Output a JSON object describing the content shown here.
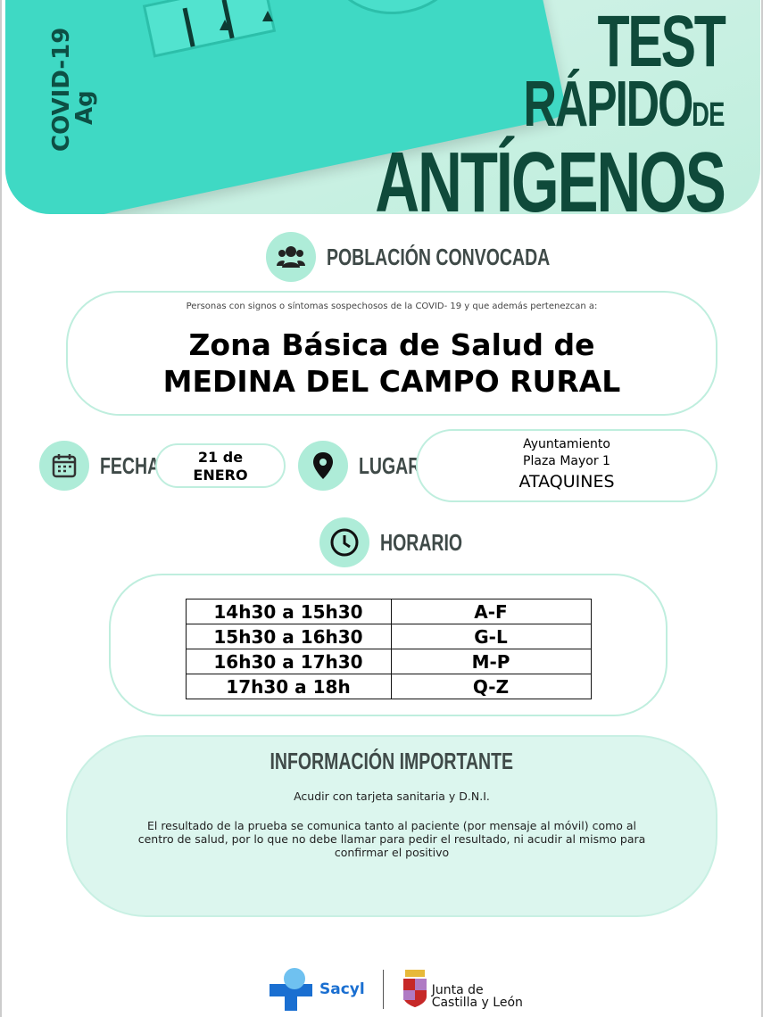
{
  "header": {
    "strip_label_1": "COVID-19",
    "strip_label_2": "Ag",
    "title_line1": "TEST",
    "title_line2": "RÁPIDO",
    "title_de": "DE",
    "title_line3": "ANTÍGENOS"
  },
  "poblacion": {
    "heading": "POBLACIÓN CONVOCADA",
    "intro": "Personas con signos o síntomas sospechosos de la COVID- 19 y que además pertenezcan a:",
    "zone_line1": "Zona Básica de Salud de",
    "zone_line2": "MEDINA DEL CAMPO RURAL"
  },
  "fecha": {
    "label": "FECHA",
    "value_line1": "21 de",
    "value_line2": "ENERO"
  },
  "lugar": {
    "label": "LUGAR",
    "line1": "Ayuntamiento",
    "line2": "Plaza Mayor 1",
    "line3": "ATAQUINES"
  },
  "horario": {
    "heading": "HORARIO",
    "rows": [
      [
        "14h30 a 15h30",
        "A-F"
      ],
      [
        "15h30 a 16h30",
        "G-L"
      ],
      [
        "16h30 a 17h30",
        "M-P"
      ],
      [
        "17h30 a 18h",
        "Q-Z"
      ]
    ]
  },
  "info": {
    "heading": "INFORMACIÓN IMPORTANTE",
    "line1": "Acudir con tarjeta sanitaria y D.N.I.",
    "line2": "El resultado de la prueba se comunica tanto al paciente (por mensaje al móvil) como al centro de salud, por lo que no debe llamar para pedir el resultado, ni acudir al mismo para confirmar el positivo"
  },
  "footer": {
    "logo1": "Sacyl",
    "logo2_line1": "Junta de",
    "logo2_line2": "Castilla y León"
  },
  "colors": {
    "accent": "#aeecd8",
    "title": "#0f4a3a",
    "strip": "#3fd9c4"
  }
}
